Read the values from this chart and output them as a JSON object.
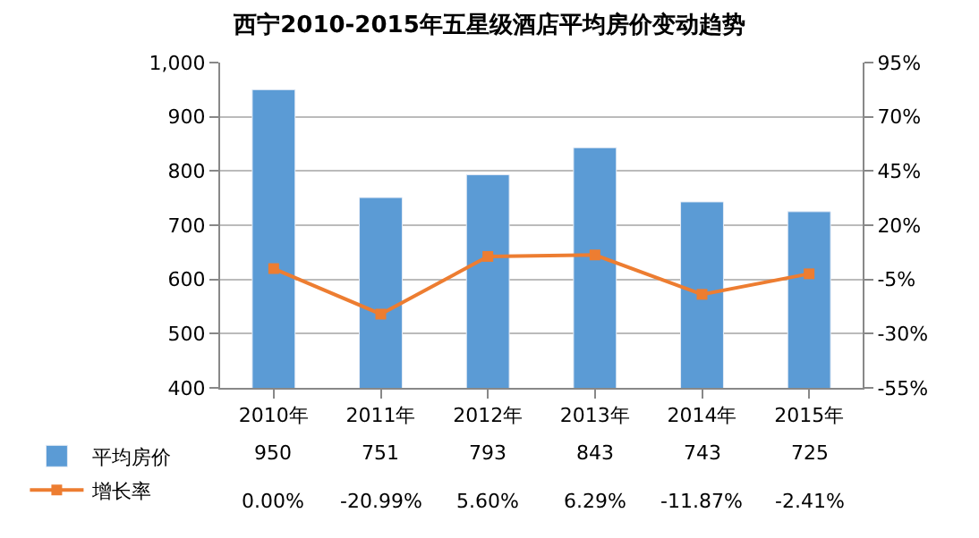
{
  "chart_data": {
    "type": "bar",
    "title": "西宁2010-2015年五星级酒店平均房价变动趋势",
    "categories": [
      "2010年",
      "2011年",
      "2012年",
      "2013年",
      "2014年",
      "2015年"
    ],
    "series": [
      {
        "name": "平均房价",
        "color": "#5b9bd5",
        "values": [
          950,
          751,
          793,
          843,
          743,
          725
        ],
        "value_labels": [
          "950",
          "751",
          "793",
          "843",
          "743",
          "725"
        ]
      },
      {
        "name": "增长率",
        "type": "line",
        "axis": "y2",
        "color": "#ed7d31",
        "marker": "square",
        "values": [
          0.0,
          -20.99,
          5.6,
          6.29,
          -11.87,
          -2.41
        ],
        "value_labels": [
          "0.00%",
          "-20.99%",
          "5.60%",
          "6.29%",
          "-11.87%",
          "-2.41%"
        ]
      }
    ],
    "ylim": [
      400,
      1000
    ],
    "yticks": [
      400,
      500,
      600,
      700,
      800,
      900,
      {
        "value": 1000,
        "label": "1,000"
      }
    ],
    "y2lim": [
      -55,
      95
    ],
    "y2ticks": [
      {
        "value": -55,
        "label": "-55%"
      },
      {
        "value": -30,
        "label": "-30%"
      },
      {
        "value": -5,
        "label": "-5%"
      },
      {
        "value": 20,
        "label": "20%"
      },
      {
        "value": 45,
        "label": "45%"
      },
      {
        "value": 70,
        "label": "70%"
      },
      {
        "value": 95,
        "label": "95%"
      }
    ],
    "grid": "y",
    "legend": "bottom left"
  }
}
